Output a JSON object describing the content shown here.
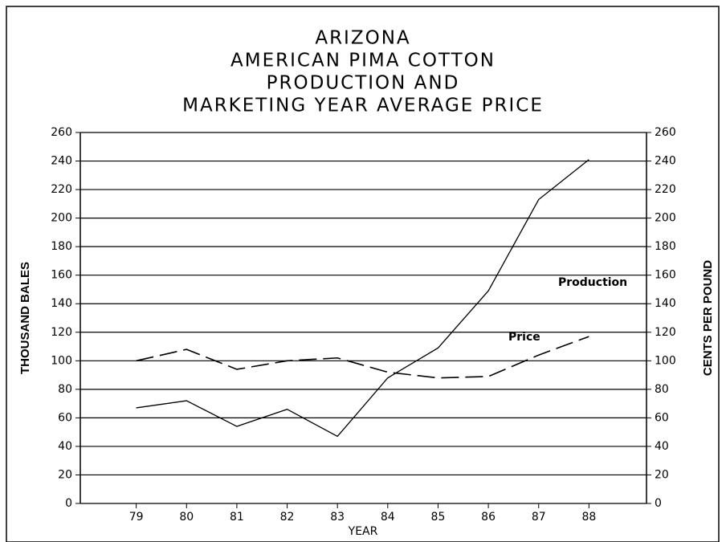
{
  "chart_data": {
    "type": "line",
    "title": [
      "ARIZONA",
      "AMERICAN PIMA COTTON",
      "PRODUCTION AND",
      "MARKETING YEAR AVERAGE PRICE"
    ],
    "x_label": "YEAR",
    "y_label": "THOUSAND BALES",
    "y2_label": "CENTS PER POUND",
    "x": [
      79,
      80,
      81,
      82,
      83,
      84,
      85,
      86,
      87,
      88
    ],
    "xlim": [
      78,
      89
    ],
    "xticks": [
      79,
      80,
      81,
      82,
      83,
      84,
      85,
      86,
      87,
      88
    ],
    "ylim": [
      0,
      260
    ],
    "yticks": [
      0,
      20,
      40,
      60,
      80,
      100,
      120,
      140,
      160,
      180,
      200,
      220,
      240,
      260
    ],
    "y2lim": [
      0,
      260
    ],
    "y2ticks": [
      0,
      20,
      40,
      60,
      80,
      100,
      120,
      140,
      160,
      180,
      200,
      220,
      240,
      260
    ],
    "grid": true,
    "series": [
      {
        "name": "Production",
        "color": "#000000",
        "line_style": "solid",
        "values": [
          67,
          72,
          54,
          66,
          47,
          88,
          109,
          149,
          213,
          241
        ]
      },
      {
        "name": "Price",
        "color": "#000000",
        "line_style": "dashed",
        "axis": "y2",
        "values": [
          100,
          108,
          94,
          100,
          102,
          92,
          88,
          89,
          104,
          117
        ]
      }
    ]
  }
}
